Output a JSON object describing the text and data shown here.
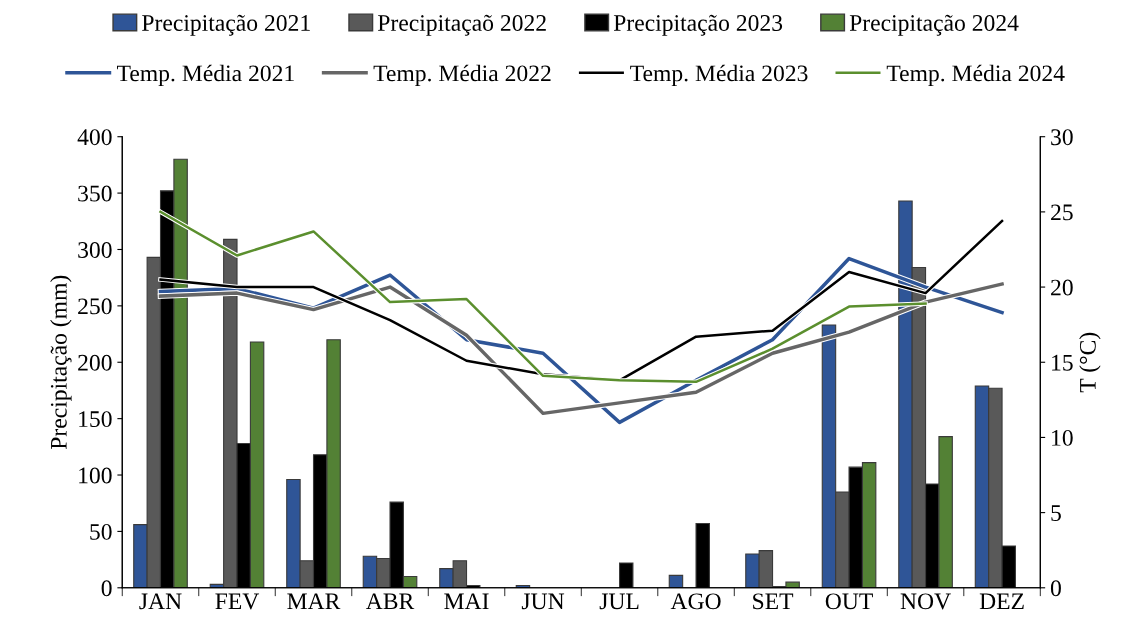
{
  "chart_data": {
    "type": "bar",
    "xlabel": null,
    "ylabel": "Precipitação (mm)",
    "y2label": "T (°C)",
    "categories": [
      "JAN",
      "FEV",
      "MAR",
      "ABR",
      "MAI",
      "JUN",
      "JUL",
      "AGO",
      "SET",
      "OUT",
      "NOV",
      "DEZ"
    ],
    "series": [
      {
        "name": "Precipitação 2021",
        "color": "#2f5597",
        "values": [
          56,
          3,
          96,
          28,
          17,
          2,
          0,
          11,
          30,
          233,
          343,
          179
        ]
      },
      {
        "name": "Precipitaçaõ 2022",
        "color": "#595959",
        "values": [
          293,
          309,
          24,
          26,
          24,
          0,
          0,
          0,
          33,
          85,
          284,
          177
        ]
      },
      {
        "name": "Precipitação 2023",
        "color": "#000000",
        "values": [
          352,
          128,
          118,
          76,
          2,
          0,
          22,
          57,
          1,
          107,
          92,
          37
        ]
      },
      {
        "name": "Precipitação 2024",
        "color": "#538135",
        "values": [
          380,
          218,
          220,
          10,
          0,
          0,
          0,
          0,
          5,
          111,
          134,
          0
        ]
      },
      {
        "name": "Temp. Média 2021",
        "type": "line",
        "axis": "y2",
        "color": "#2e5597",
        "values": [
          19.7,
          19.9,
          18.6,
          20.8,
          16.5,
          15.6,
          11.0,
          13.8,
          16.5,
          21.9,
          20.0,
          18.3
        ]
      },
      {
        "name": "Temp. Média 2022",
        "type": "line",
        "axis": "y2",
        "color": "#666666",
        "values": [
          19.4,
          19.6,
          18.5,
          20.0,
          16.8,
          11.6,
          12.3,
          13.0,
          15.6,
          17.0,
          19.0,
          20.2
        ]
      },
      {
        "name": "Temp. Média 2023",
        "type": "line",
        "axis": "y2",
        "color": "#000000",
        "values": [
          20.5,
          20.0,
          20.0,
          17.8,
          15.1,
          14.2,
          13.8,
          16.7,
          17.1,
          21.0,
          19.6,
          24.4
        ]
      },
      {
        "name": "Temp. Média 2024",
        "type": "line",
        "axis": "y2",
        "color": "#5b8f2e",
        "values": [
          25.0,
          22.1,
          23.7,
          19.0,
          19.2,
          14.1,
          13.8,
          13.7,
          15.9,
          18.7,
          18.9,
          null
        ]
      }
    ],
    "ylim": [
      0,
      400
    ],
    "yticks": [
      0,
      50,
      100,
      150,
      200,
      250,
      300,
      350,
      400
    ],
    "y2lim": [
      0,
      30
    ],
    "y2ticks": [
      0,
      5,
      10,
      15,
      20,
      25,
      30
    ],
    "grid": false,
    "legend": "top",
    "marker": "none",
    "line_style": "solid"
  }
}
